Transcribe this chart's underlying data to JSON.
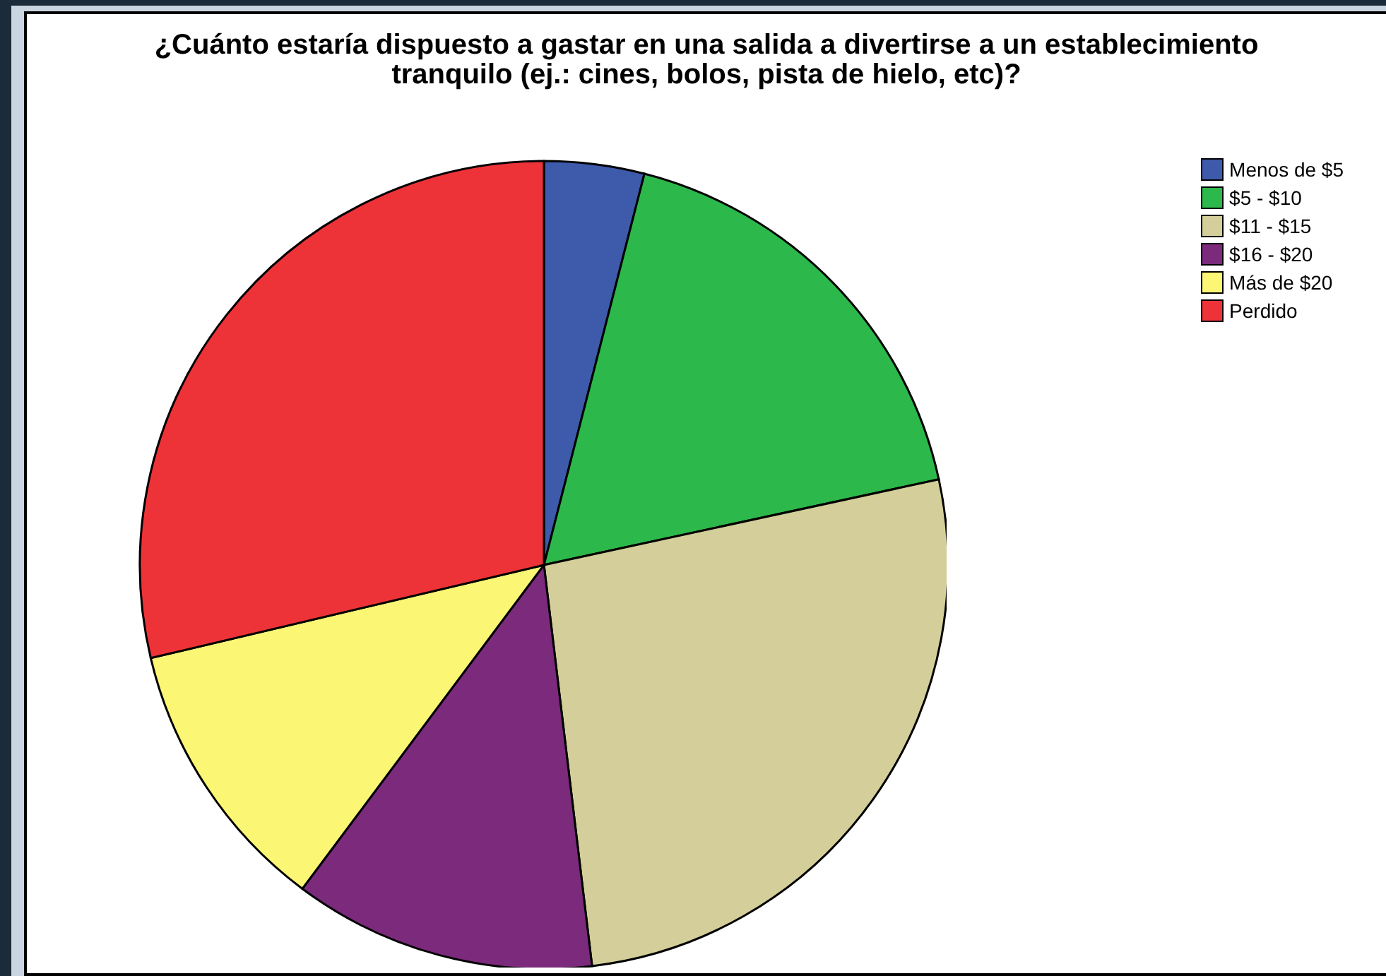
{
  "chart_data": {
    "type": "pie",
    "title": "¿Cuánto estaría dispuesto a gastar en una salida a divertirse a un establecimiento tranquilo (ej.: cines, bolos, pista de hielo, etc)?",
    "categories": [
      "Menos de $5",
      "$5 - $10",
      "$11 - $15",
      "$16 - $20",
      "Más de $20",
      "Perdido"
    ],
    "values": [
      4.0,
      17.6,
      26.5,
      12.1,
      11.1,
      28.7
    ],
    "colors": [
      "#3e5aab",
      "#2db84b",
      "#d4cf9a",
      "#7b2a7c",
      "#fbf674",
      "#ee3338"
    ],
    "legend": "top right"
  }
}
